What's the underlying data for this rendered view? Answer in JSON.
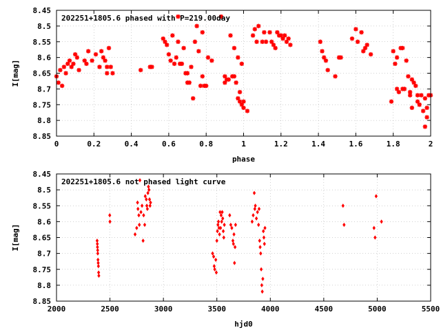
{
  "chart_data": [
    {
      "type": "scatter",
      "title": "202251+1805.6 phased with P=219.00day",
      "xlabel": "phase",
      "ylabel": "I[mag]",
      "xlim": [
        0,
        2
      ],
      "ylim": [
        8.85,
        8.45
      ],
      "y_inverted": true,
      "xticks": [
        "0",
        "0.2",
        "0.4",
        "0.6",
        "0.8",
        "1",
        "1.2",
        "1.4",
        "1.6",
        "1.8",
        "2"
      ],
      "xtick_values": [
        0,
        0.2,
        0.4,
        0.6,
        0.8,
        1.0,
        1.2,
        1.4,
        1.6,
        1.8,
        2.0
      ],
      "yticks": [
        "8.45",
        "8.5",
        "8.55",
        "8.6",
        "8.65",
        "8.7",
        "8.75",
        "8.8",
        "8.85"
      ],
      "ytick_values": [
        8.45,
        8.5,
        8.55,
        8.6,
        8.65,
        8.7,
        8.75,
        8.8,
        8.85
      ],
      "marker": "star",
      "color": "#ff0000",
      "points": [
        [
          0.0,
          8.66
        ],
        [
          0.01,
          8.68
        ],
        [
          0.02,
          8.64
        ],
        [
          0.03,
          8.69
        ],
        [
          0.04,
          8.63
        ],
        [
          0.05,
          8.65
        ],
        [
          0.06,
          8.62
        ],
        [
          0.07,
          8.61
        ],
        [
          0.08,
          8.63
        ],
        [
          0.09,
          8.62
        ],
        [
          0.1,
          8.59
        ],
        [
          0.11,
          8.6
        ],
        [
          0.12,
          8.64
        ],
        [
          0.15,
          8.61
        ],
        [
          0.16,
          8.62
        ],
        [
          0.17,
          8.58
        ],
        [
          0.19,
          8.61
        ],
        [
          0.21,
          8.59
        ],
        [
          0.23,
          8.63
        ],
        [
          0.24,
          8.58
        ],
        [
          0.25,
          8.6
        ],
        [
          0.26,
          8.61
        ],
        [
          0.27,
          8.63
        ],
        [
          0.27,
          8.65
        ],
        [
          0.28,
          8.57
        ],
        [
          0.29,
          8.63
        ],
        [
          0.3,
          8.65
        ],
        [
          0.45,
          8.64
        ],
        [
          0.5,
          8.63
        ],
        [
          0.51,
          8.63
        ],
        [
          0.57,
          8.54
        ],
        [
          0.58,
          8.55
        ],
        [
          0.59,
          8.56
        ],
        [
          0.6,
          8.59
        ],
        [
          0.61,
          8.61
        ],
        [
          0.62,
          8.53
        ],
        [
          0.63,
          8.62
        ],
        [
          0.64,
          8.6
        ],
        [
          0.65,
          8.47
        ],
        [
          0.65,
          8.55
        ],
        [
          0.66,
          8.62
        ],
        [
          0.67,
          8.62
        ],
        [
          0.68,
          8.57
        ],
        [
          0.69,
          8.65
        ],
        [
          0.7,
          8.65
        ],
        [
          0.7,
          8.68
        ],
        [
          0.71,
          8.68
        ],
        [
          0.72,
          8.63
        ],
        [
          0.73,
          8.73
        ],
        [
          0.74,
          8.55
        ],
        [
          0.75,
          8.5
        ],
        [
          0.76,
          8.58
        ],
        [
          0.77,
          8.69
        ],
        [
          0.78,
          8.52
        ],
        [
          0.78,
          8.66
        ],
        [
          0.79,
          8.69
        ],
        [
          0.8,
          8.69
        ],
        [
          0.81,
          8.6
        ],
        [
          0.83,
          8.61
        ],
        [
          0.88,
          8.47
        ],
        [
          0.9,
          8.68
        ],
        [
          0.9,
          8.66
        ],
        [
          0.91,
          8.67
        ],
        [
          0.92,
          8.67
        ],
        [
          0.93,
          8.53
        ],
        [
          0.94,
          8.66
        ],
        [
          0.95,
          8.57
        ],
        [
          0.95,
          8.66
        ],
        [
          0.96,
          8.68
        ],
        [
          0.97,
          8.6
        ],
        [
          0.97,
          8.73
        ],
        [
          0.98,
          8.71
        ],
        [
          0.98,
          8.74
        ],
        [
          0.99,
          8.62
        ],
        [
          0.99,
          8.75
        ],
        [
          1.0,
          8.76
        ],
        [
          1.0,
          8.74
        ],
        [
          1.02,
          8.77
        ],
        [
          1.05,
          8.53
        ],
        [
          1.06,
          8.51
        ],
        [
          1.07,
          8.55
        ],
        [
          1.08,
          8.5
        ],
        [
          1.1,
          8.55
        ],
        [
          1.11,
          8.52
        ],
        [
          1.12,
          8.55
        ],
        [
          1.14,
          8.52
        ],
        [
          1.15,
          8.55
        ],
        [
          1.16,
          8.56
        ],
        [
          1.17,
          8.57
        ],
        [
          1.18,
          8.52
        ],
        [
          1.19,
          8.53
        ],
        [
          1.2,
          8.53
        ],
        [
          1.21,
          8.54
        ],
        [
          1.22,
          8.53
        ],
        [
          1.23,
          8.55
        ],
        [
          1.24,
          8.54
        ],
        [
          1.25,
          8.56
        ],
        [
          1.41,
          8.55
        ],
        [
          1.42,
          8.58
        ],
        [
          1.43,
          8.6
        ],
        [
          1.44,
          8.61
        ],
        [
          1.45,
          8.64
        ],
        [
          1.49,
          8.66
        ],
        [
          1.51,
          8.6
        ],
        [
          1.52,
          8.6
        ],
        [
          1.58,
          8.54
        ],
        [
          1.6,
          8.51
        ],
        [
          1.61,
          8.55
        ],
        [
          1.63,
          8.52
        ],
        [
          1.64,
          8.58
        ],
        [
          1.65,
          8.57
        ],
        [
          1.66,
          8.56
        ],
        [
          1.68,
          8.59
        ],
        [
          1.79,
          8.74
        ],
        [
          1.8,
          8.58
        ],
        [
          1.81,
          8.62
        ],
        [
          1.82,
          8.6
        ],
        [
          1.82,
          8.7
        ],
        [
          1.83,
          8.71
        ],
        [
          1.84,
          8.57
        ],
        [
          1.85,
          8.57
        ],
        [
          1.85,
          8.7
        ],
        [
          1.86,
          8.7
        ],
        [
          1.87,
          8.61
        ],
        [
          1.88,
          8.66
        ],
        [
          1.89,
          8.71
        ],
        [
          1.89,
          8.72
        ],
        [
          1.9,
          8.67
        ],
        [
          1.9,
          8.76
        ],
        [
          1.91,
          8.68
        ],
        [
          1.92,
          8.69
        ],
        [
          1.93,
          8.74
        ],
        [
          1.93,
          8.72
        ],
        [
          1.94,
          8.75
        ],
        [
          1.94,
          8.75
        ],
        [
          1.95,
          8.72
        ],
        [
          1.96,
          8.77
        ],
        [
          1.97,
          8.73
        ],
        [
          1.97,
          8.82
        ],
        [
          1.98,
          8.76
        ],
        [
          1.98,
          8.79
        ],
        [
          1.99,
          8.72
        ],
        [
          2.0,
          8.72
        ]
      ]
    },
    {
      "type": "scatter",
      "title": "202251+1805.6 not phased light curve",
      "xlabel": "hjd0",
      "ylabel": "I[mag]",
      "xlim": [
        2000,
        5500
      ],
      "ylim": [
        8.85,
        8.45
      ],
      "y_inverted": true,
      "xticks": [
        "2000",
        "2500",
        "3000",
        "3500",
        "4000",
        "4500",
        "5000",
        "5500"
      ],
      "xtick_values": [
        2000,
        2500,
        3000,
        3500,
        4000,
        4500,
        5000,
        5500
      ],
      "yticks": [
        "8.45",
        "8.5",
        "8.55",
        "8.6",
        "8.65",
        "8.7",
        "8.75",
        "8.8",
        "8.85"
      ],
      "ytick_values": [
        8.45,
        8.5,
        8.55,
        8.6,
        8.65,
        8.7,
        8.75,
        8.8,
        8.85
      ],
      "marker": "diamond",
      "color": "#ff0000",
      "points": [
        [
          2380,
          8.66
        ],
        [
          2382,
          8.67
        ],
        [
          2383,
          8.68
        ],
        [
          2385,
          8.69
        ],
        [
          2386,
          8.7
        ],
        [
          2388,
          8.72
        ],
        [
          2390,
          8.73
        ],
        [
          2392,
          8.74
        ],
        [
          2394,
          8.76
        ],
        [
          2396,
          8.77
        ],
        [
          2498,
          8.58
        ],
        [
          2500,
          8.6
        ],
        [
          2735,
          8.64
        ],
        [
          2750,
          8.62
        ],
        [
          2758,
          8.54
        ],
        [
          2762,
          8.56
        ],
        [
          2770,
          8.58
        ],
        [
          2775,
          8.61
        ],
        [
          2780,
          8.47
        ],
        [
          2790,
          8.57
        ],
        [
          2800,
          8.55
        ],
        [
          2810,
          8.66
        ],
        [
          2815,
          8.58
        ],
        [
          2825,
          8.61
        ],
        [
          2830,
          8.52
        ],
        [
          2840,
          8.53
        ],
        [
          2845,
          8.55
        ],
        [
          2850,
          8.56
        ],
        [
          2855,
          8.51
        ],
        [
          2860,
          8.49
        ],
        [
          2865,
          8.5
        ],
        [
          2870,
          8.53
        ],
        [
          2875,
          8.55
        ],
        [
          2880,
          8.54
        ],
        [
          3460,
          8.7
        ],
        [
          3470,
          8.71
        ],
        [
          3475,
          8.74
        ],
        [
          3480,
          8.75
        ],
        [
          3490,
          8.72
        ],
        [
          3495,
          8.76
        ],
        [
          3500,
          8.66
        ],
        [
          3505,
          8.63
        ],
        [
          3510,
          8.61
        ],
        [
          3515,
          8.6
        ],
        [
          3520,
          8.62
        ],
        [
          3525,
          8.64
        ],
        [
          3530,
          8.57
        ],
        [
          3535,
          8.62
        ],
        [
          3540,
          8.58
        ],
        [
          3545,
          8.6
        ],
        [
          3550,
          8.57
        ],
        [
          3555,
          8.59
        ],
        [
          3560,
          8.63
        ],
        [
          3565,
          8.65
        ],
        [
          3570,
          8.61
        ],
        [
          3620,
          8.58
        ],
        [
          3630,
          8.61
        ],
        [
          3640,
          8.62
        ],
        [
          3650,
          8.66
        ],
        [
          3655,
          8.67
        ],
        [
          3660,
          8.64
        ],
        [
          3665,
          8.73
        ],
        [
          3670,
          8.68
        ],
        [
          3675,
          8.61
        ],
        [
          3830,
          8.6
        ],
        [
          3840,
          8.58
        ],
        [
          3850,
          8.51
        ],
        [
          3855,
          8.56
        ],
        [
          3860,
          8.55
        ],
        [
          3870,
          8.59
        ],
        [
          3880,
          8.57
        ],
        [
          3890,
          8.61
        ],
        [
          3895,
          8.56
        ],
        [
          3900,
          8.66
        ],
        [
          3905,
          8.68
        ],
        [
          3910,
          8.7
        ],
        [
          3915,
          8.75
        ],
        [
          3920,
          8.8
        ],
        [
          3925,
          8.82
        ],
        [
          3930,
          8.78
        ],
        [
          3935,
          8.63
        ],
        [
          3940,
          8.65
        ],
        [
          3945,
          8.67
        ],
        [
          3950,
          8.62
        ],
        [
          4680,
          8.55
        ],
        [
          4690,
          8.61
        ],
        [
          4970,
          8.62
        ],
        [
          4980,
          8.65
        ],
        [
          4990,
          8.52
        ],
        [
          5040,
          8.6
        ]
      ]
    }
  ]
}
